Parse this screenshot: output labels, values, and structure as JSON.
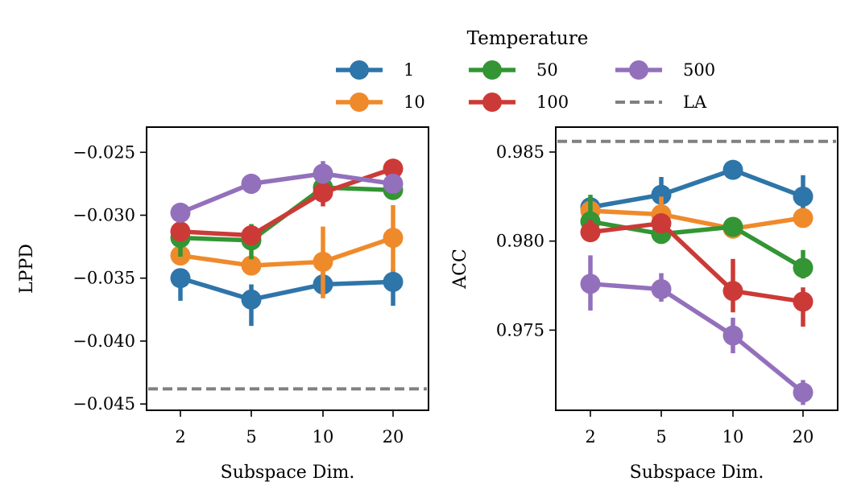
{
  "legend": {
    "title": "Temperature",
    "entries": [
      {
        "label": "1",
        "color": "#2e75a9",
        "kind": "series"
      },
      {
        "label": "50",
        "color": "#339533",
        "kind": "series"
      },
      {
        "label": "500",
        "color": "#9370bc",
        "kind": "series"
      },
      {
        "label": "10",
        "color": "#ef8a2b",
        "kind": "series"
      },
      {
        "label": "100",
        "color": "#cc3a37",
        "kind": "series"
      },
      {
        "label": "LA",
        "color": "#808080",
        "kind": "dashed"
      }
    ]
  },
  "chart_data": [
    {
      "type": "line",
      "xlabel": "Subspace Dim.",
      "ylabel": "LPPD",
      "categories": [
        "2",
        "5",
        "10",
        "20"
      ],
      "ylim": [
        -0.0455,
        -0.023
      ],
      "yticks": [
        -0.025,
        -0.03,
        -0.035,
        -0.04,
        -0.045
      ],
      "ytick_labels": [
        "−0.025",
        "−0.030",
        "−0.035",
        "−0.040",
        "−0.045"
      ],
      "reference_line": {
        "name": "LA",
        "value": -0.0438,
        "color": "#808080"
      },
      "series": [
        {
          "name": "1",
          "color": "#2e75a9",
          "values": [
            -0.035,
            -0.0367,
            -0.0355,
            -0.0353
          ],
          "lower": [
            -0.0368,
            -0.0388,
            -0.0363,
            -0.0372
          ],
          "upper": [
            -0.0343,
            -0.0355,
            -0.0343,
            -0.0343
          ]
        },
        {
          "name": "10",
          "color": "#ef8a2b",
          "values": [
            -0.0332,
            -0.034,
            -0.0337,
            -0.0318
          ],
          "lower": [
            -0.0338,
            -0.0344,
            -0.0366,
            -0.0345
          ],
          "upper": [
            -0.0327,
            -0.0336,
            -0.0309,
            -0.0292
          ]
        },
        {
          "name": "50",
          "color": "#339533",
          "values": [
            -0.0318,
            -0.032,
            -0.0278,
            -0.028
          ],
          "lower": [
            -0.0333,
            -0.0335,
            -0.0284,
            -0.0285
          ],
          "upper": [
            -0.0308,
            -0.0307,
            -0.0274,
            -0.0275
          ]
        },
        {
          "name": "100",
          "color": "#cc3a37",
          "values": [
            -0.0313,
            -0.0316,
            -0.0282,
            -0.0263
          ],
          "lower": [
            -0.0319,
            -0.032,
            -0.0293,
            -0.0268
          ],
          "upper": [
            -0.0307,
            -0.031,
            -0.0275,
            -0.0258
          ]
        },
        {
          "name": "500",
          "color": "#9370bc",
          "values": [
            -0.0298,
            -0.0275,
            -0.0267,
            -0.0275
          ],
          "lower": [
            -0.0305,
            -0.0283,
            -0.0275,
            -0.0282
          ],
          "upper": [
            -0.0291,
            -0.0268,
            -0.0257,
            -0.0268
          ]
        }
      ]
    },
    {
      "type": "line",
      "xlabel": "Subspace Dim.",
      "ylabel": "ACC",
      "categories": [
        "2",
        "5",
        "10",
        "20"
      ],
      "ylim": [
        0.9705,
        0.9864
      ],
      "yticks": [
        0.985,
        0.98,
        0.975
      ],
      "ytick_labels": [
        "0.985",
        "0.980",
        "0.975"
      ],
      "reference_line": {
        "name": "LA",
        "value": 0.9856,
        "color": "#808080"
      },
      "series": [
        {
          "name": "1",
          "color": "#2e75a9",
          "values": [
            0.9819,
            0.9826,
            0.984,
            0.9825
          ],
          "lower": [
            0.9814,
            0.9819,
            0.9836,
            0.9818
          ],
          "upper": [
            0.9823,
            0.9836,
            0.9844,
            0.9837
          ]
        },
        {
          "name": "10",
          "color": "#ef8a2b",
          "values": [
            0.9817,
            0.9815,
            0.9807,
            0.9813
          ],
          "lower": [
            0.9812,
            0.9808,
            0.9802,
            0.9809
          ],
          "upper": [
            0.982,
            0.9825,
            0.9813,
            0.9817
          ]
        },
        {
          "name": "50",
          "color": "#339533",
          "values": [
            0.9811,
            0.9804,
            0.9808,
            0.9785
          ],
          "lower": [
            0.98,
            0.9799,
            0.9803,
            0.9779
          ],
          "upper": [
            0.9826,
            0.981,
            0.9812,
            0.9795
          ]
        },
        {
          "name": "100",
          "color": "#cc3a37",
          "values": [
            0.9805,
            0.981,
            0.9772,
            0.9766
          ],
          "lower": [
            0.98,
            0.9805,
            0.976,
            0.9752
          ],
          "upper": [
            0.9812,
            0.9814,
            0.979,
            0.9774
          ]
        },
        {
          "name": "500",
          "color": "#9370bc",
          "values": [
            0.9776,
            0.9773,
            0.9747,
            0.9715
          ],
          "lower": [
            0.9761,
            0.9766,
            0.9737,
            0.9708
          ],
          "upper": [
            0.9792,
            0.9782,
            0.9757,
            0.9722
          ]
        }
      ]
    }
  ]
}
